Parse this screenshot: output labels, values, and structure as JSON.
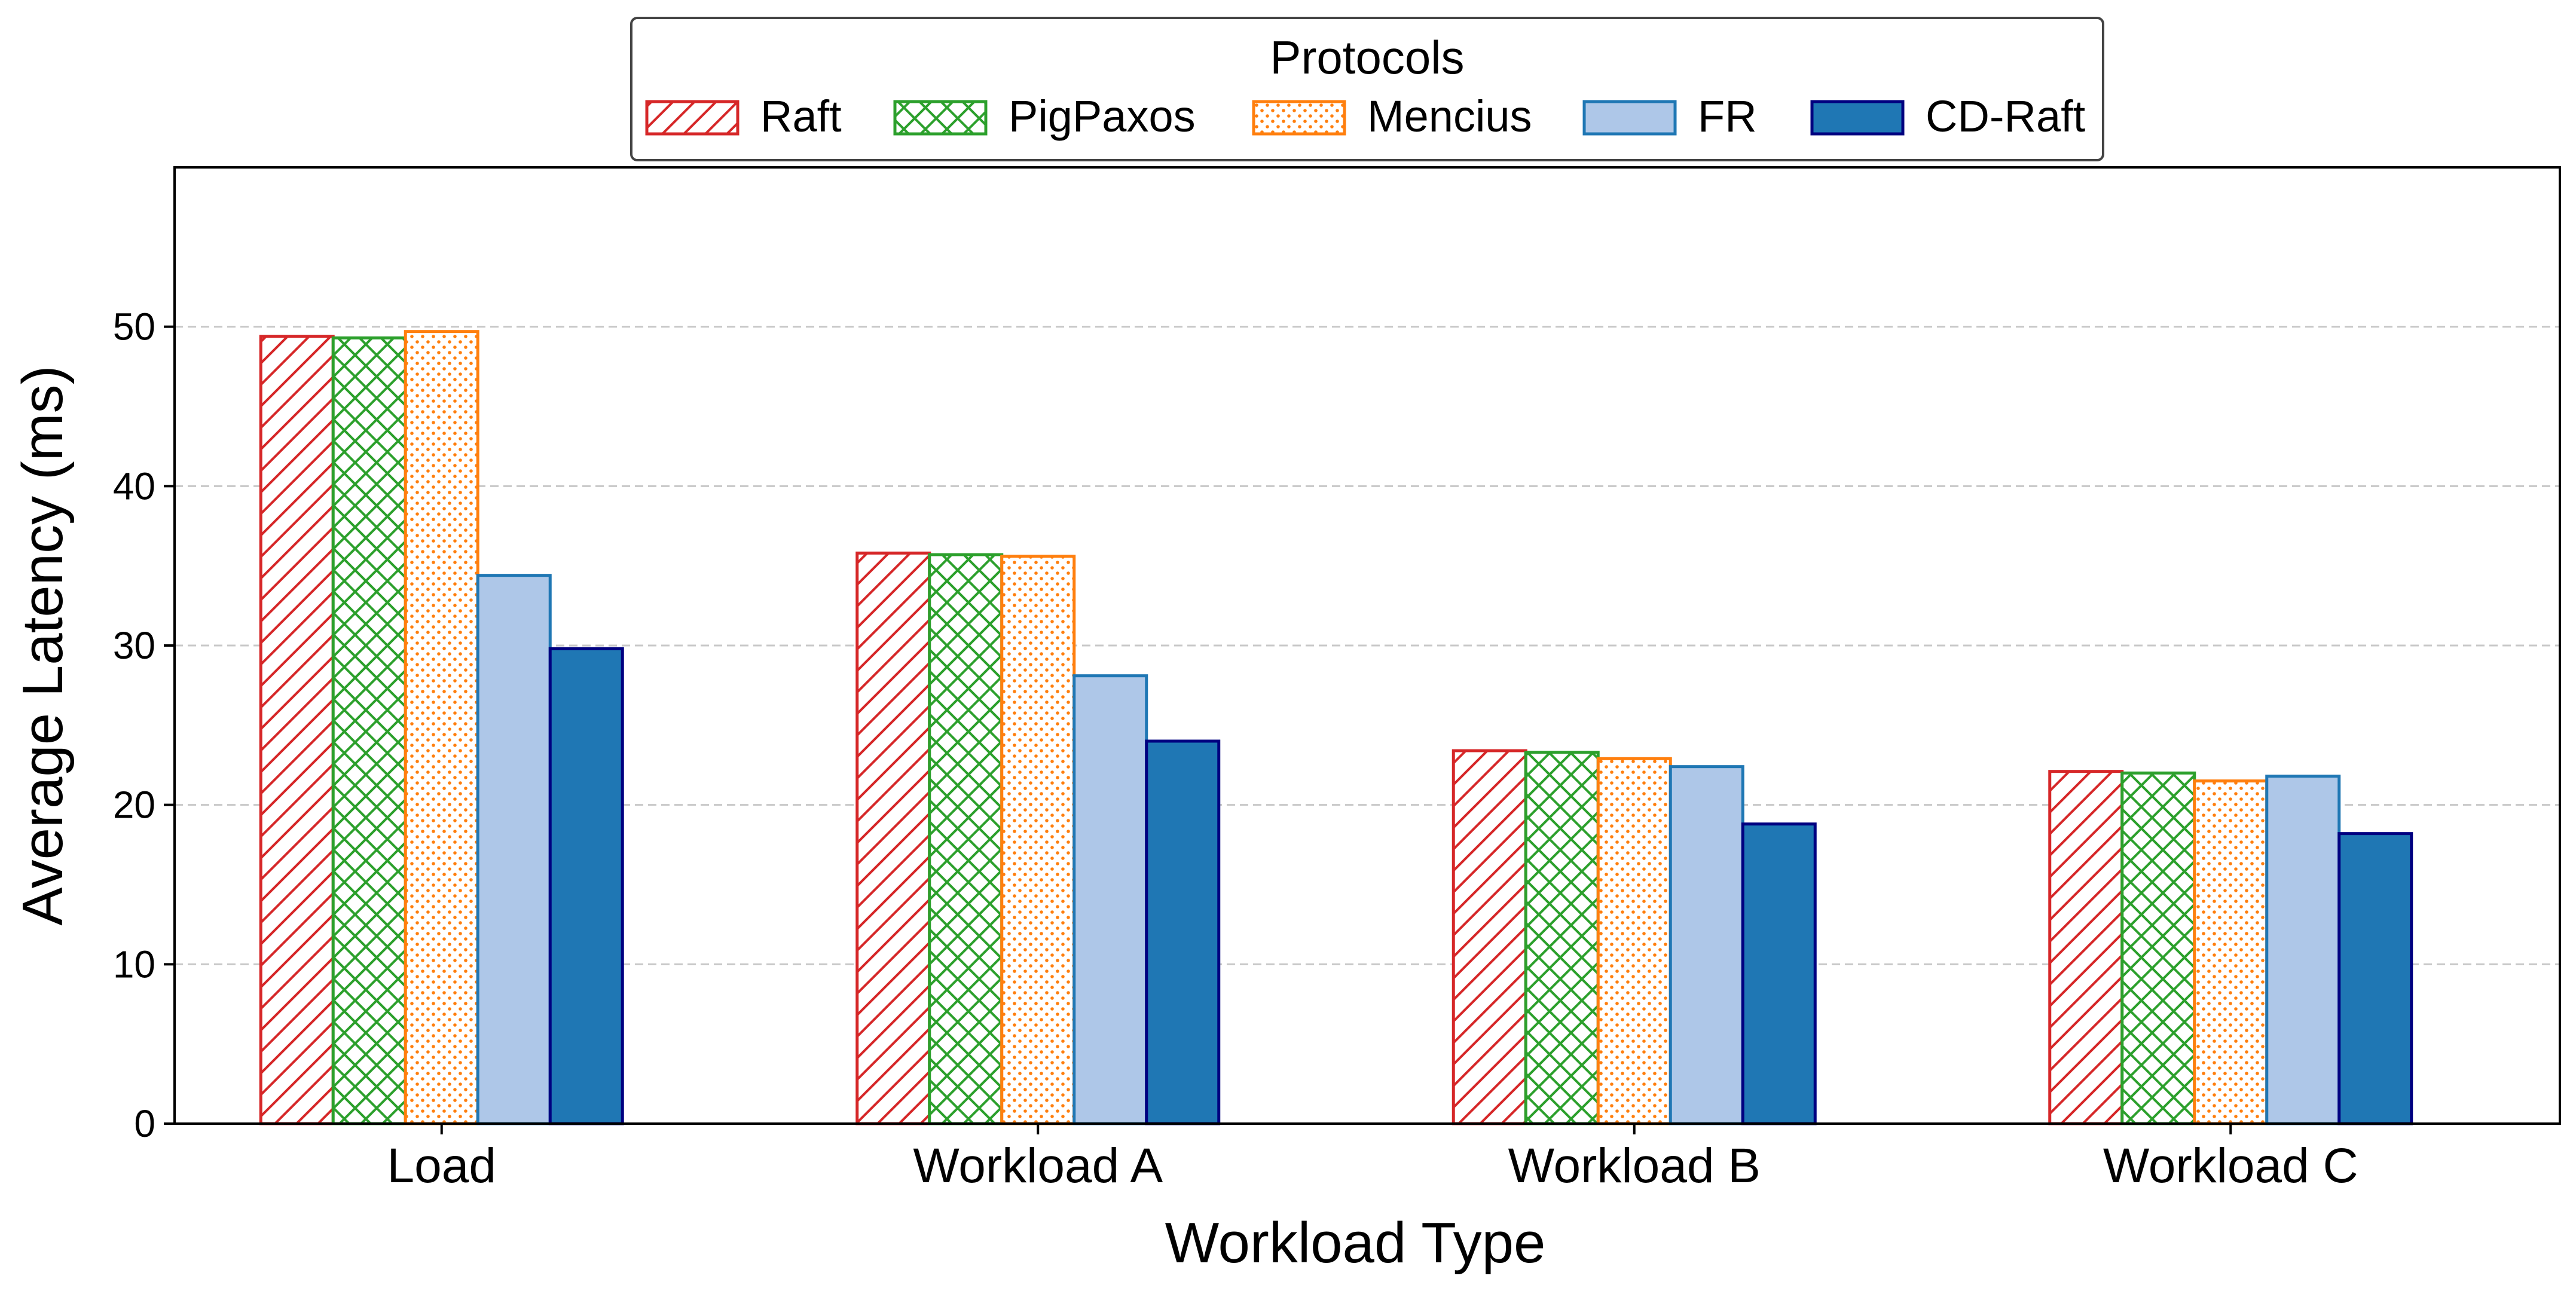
{
  "chart_data": {
    "type": "bar",
    "xlabel": "Workload Type",
    "ylabel": "Average Latency (ms)",
    "ylim": [
      0,
      60
    ],
    "yticks": [
      0,
      10,
      20,
      30,
      40,
      50
    ],
    "grid": "horizontal dashed",
    "categories": [
      "Load",
      "Workload A",
      "Workload B",
      "Workload C"
    ],
    "legend": {
      "title": "Protocols",
      "placement": "top-center, above plot"
    },
    "series": [
      {
        "name": "Raft",
        "values": [
          49.4,
          35.8,
          23.4,
          22.1
        ],
        "edge": "#d62728",
        "fill": "#ffffff",
        "pattern": "diagonal-hatch"
      },
      {
        "name": "PigPaxos",
        "values": [
          49.3,
          35.7,
          23.3,
          22.0
        ],
        "edge": "#2ca02c",
        "fill": "#ffffff",
        "pattern": "cross-hatch"
      },
      {
        "name": "Mencius",
        "values": [
          49.7,
          35.6,
          22.9,
          21.5
        ],
        "edge": "#ff7f0e",
        "fill": "#ffffff",
        "pattern": "dots"
      },
      {
        "name": "FR",
        "values": [
          34.4,
          28.1,
          22.4,
          21.8
        ],
        "edge": "#1f77b4",
        "fill": "#aec7e8",
        "pattern": "solid"
      },
      {
        "name": "CD-Raft",
        "values": [
          29.8,
          24.0,
          18.8,
          18.2
        ],
        "edge": "#000080",
        "fill": "#1f77b4",
        "pattern": "solid"
      }
    ]
  }
}
